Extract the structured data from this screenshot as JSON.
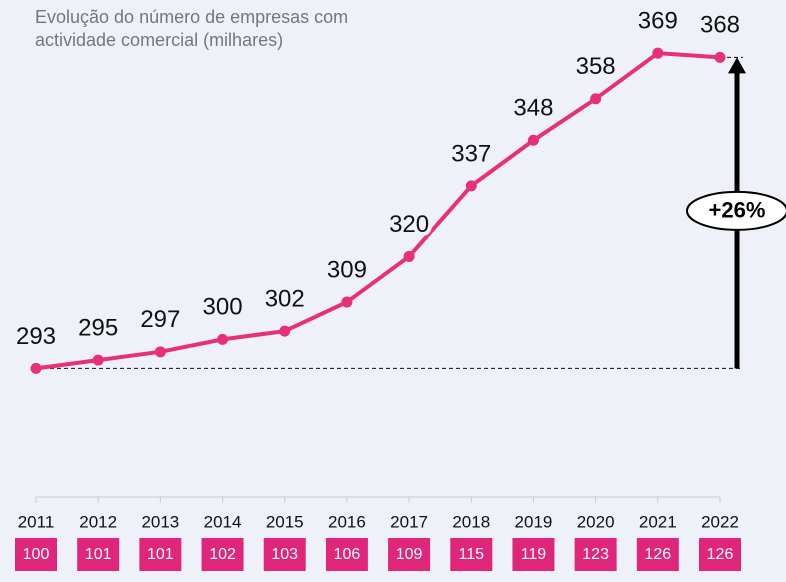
{
  "chart_data": {
    "type": "line",
    "title": "Evolução do número de empresas com actividade comercial (milhares)",
    "categories": [
      "2011",
      "2012",
      "2013",
      "2014",
      "2015",
      "2016",
      "2017",
      "2018",
      "2019",
      "2020",
      "2021",
      "2022"
    ],
    "values": [
      293,
      295,
      297,
      300,
      302,
      309,
      320,
      337,
      348,
      358,
      369,
      368
    ],
    "index_values": [
      100,
      101,
      101,
      102,
      103,
      106,
      109,
      115,
      119,
      123,
      126,
      126
    ],
    "annotation": "+26%",
    "color": "#e8307a",
    "index_color": "#e0267a",
    "ylim": [
      262,
      377
    ]
  }
}
